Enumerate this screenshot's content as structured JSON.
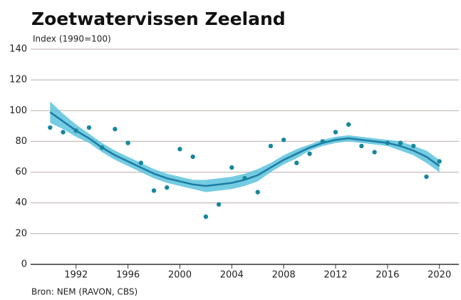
{
  "chart_data": {
    "type": "scatter",
    "title": "Zoetwatervissen Zeeland",
    "subtitle": "Index (1990=100)",
    "source": "Bron: NEM (RAVON, CBS)",
    "x": [
      1990,
      1991,
      1992,
      1993,
      1994,
      1995,
      1996,
      1997,
      1998,
      1999,
      2000,
      2001,
      2002,
      2003,
      2004,
      2005,
      2006,
      2007,
      2008,
      2009,
      2010,
      2011,
      2012,
      2013,
      2014,
      2015,
      2016,
      2017,
      2018,
      2019,
      2020
    ],
    "values": [
      89,
      86,
      87,
      89,
      76,
      88,
      79,
      66,
      48,
      50,
      75,
      70,
      31,
      39,
      63,
      56,
      47,
      77,
      81,
      66,
      72,
      80,
      86,
      91,
      77,
      73,
      79,
      79,
      77,
      57,
      67
    ],
    "color": "#17879c",
    "trend": {
      "values": [
        99,
        93,
        87,
        82,
        76,
        71,
        67,
        63,
        59,
        56,
        54,
        52,
        51,
        52,
        53,
        55,
        58,
        63,
        68,
        72,
        76,
        79,
        81,
        82,
        81,
        80,
        79,
        77,
        74,
        70,
        64
      ],
      "upper": [
        106,
        98,
        91,
        85,
        79,
        74,
        70,
        66,
        62,
        59,
        57,
        55,
        55,
        56,
        57,
        59,
        62,
        66,
        71,
        75,
        78,
        81,
        83,
        84,
        83,
        82,
        81,
        80,
        77,
        74,
        68
      ],
      "lower": [
        92,
        88,
        83,
        79,
        73,
        68,
        64,
        60,
        56,
        53,
        51,
        49,
        47,
        48,
        49,
        51,
        54,
        60,
        65,
        69,
        74,
        77,
        79,
        80,
        79,
        78,
        77,
        74,
        71,
        66,
        60
      ],
      "color": "#1d7ca3",
      "band_color": "#5cc3dd"
    },
    "xlim": [
      1988.5,
      2021.5
    ],
    "xticks": [
      1992,
      1996,
      2000,
      2004,
      2008,
      2012,
      2016,
      2020
    ],
    "ylim": [
      0,
      140
    ],
    "yticks": [
      0,
      20,
      40,
      60,
      80,
      100,
      120,
      140
    ],
    "grid": true
  }
}
